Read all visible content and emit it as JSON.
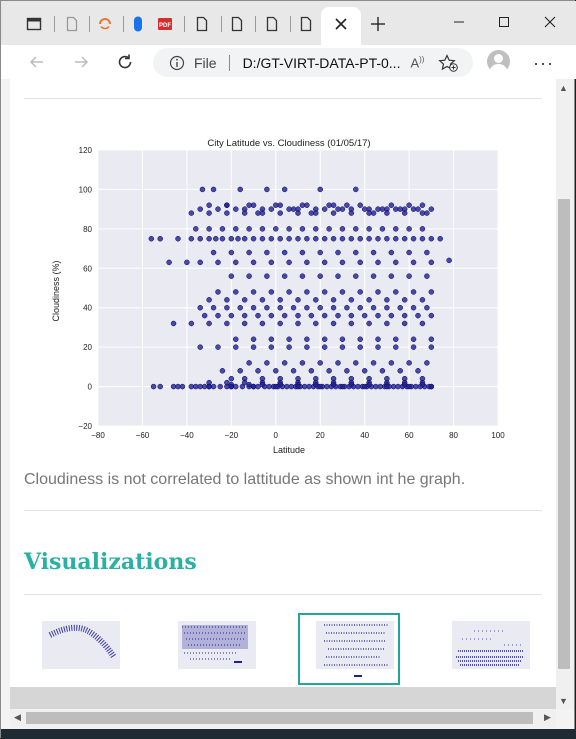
{
  "browser": {
    "address": {
      "file_label": "File",
      "url": "D:/GT-VIRT-DATA-PT-0..."
    },
    "icons": {
      "tab_icons": [
        "window-icon",
        "page-icon",
        "loading-icon",
        "extension-icon",
        "pdf-icon",
        "page-icon",
        "page-icon",
        "page-icon",
        "page-icon"
      ],
      "close_tab": "close-icon",
      "new_tab": "plus-icon"
    }
  },
  "page": {
    "description": "Cloudiness is not correlated to lattitude as shown int he graph.",
    "section_title": "Visualizations",
    "accent_color": "#2ab0a4"
  },
  "chart_data": {
    "type": "scatter",
    "title": "City Latitude vs. Cloudiness (01/05/17)",
    "xlabel": "Latitude",
    "ylabel": "Cloudiness (%)",
    "xlim": [
      -80,
      100
    ],
    "ylim": [
      -20,
      120
    ],
    "xticks": [
      -80,
      -60,
      -40,
      -20,
      0,
      20,
      40,
      60,
      80,
      100
    ],
    "yticks": [
      -20,
      0,
      20,
      40,
      60,
      80,
      100,
      120
    ],
    "grid": true,
    "marker_color": "#1f1f9a",
    "series": [
      {
        "x": [
          -55,
          -52,
          -46,
          -44,
          -42,
          -38,
          -36,
          -34,
          -32,
          -30,
          -28,
          -25,
          -22,
          -20,
          -18,
          -15,
          -12,
          -10,
          -8,
          -5,
          -3,
          -1,
          1,
          3,
          5,
          7,
          9,
          11,
          13,
          15,
          17,
          19,
          21,
          23,
          25,
          27,
          29,
          31,
          33,
          35,
          37,
          39,
          41,
          43,
          45,
          47,
          49,
          51,
          53,
          55,
          57,
          59,
          61,
          63,
          65,
          67,
          69,
          70,
          -56,
          -52,
          -44,
          -38,
          -34,
          -30,
          -27,
          -24,
          -20,
          -17,
          -14,
          -10,
          -6,
          -2,
          2,
          6,
          10,
          14,
          18,
          22,
          26,
          30,
          34,
          38,
          42,
          46,
          50,
          54,
          58,
          62,
          66,
          70,
          74,
          -34,
          -30,
          -26,
          -22,
          -18,
          -14,
          -10,
          -6,
          -2,
          2,
          6,
          10,
          14,
          18,
          22,
          26,
          30,
          34,
          38,
          42,
          46,
          50,
          54,
          58,
          62,
          66,
          70,
          -33,
          -28,
          -22,
          -16,
          -12,
          -8,
          -4,
          0,
          4,
          8,
          12,
          16,
          20,
          24,
          28,
          32,
          36,
          40,
          44,
          48,
          52,
          56,
          60,
          64,
          68,
          -36,
          -30,
          -24,
          -18,
          -12,
          -6,
          0,
          6,
          12,
          18,
          24,
          30,
          36,
          42,
          48,
          54,
          60,
          66,
          -38,
          -30,
          -22,
          -14,
          -6,
          2,
          10,
          18,
          26,
          34,
          42,
          50,
          58,
          66,
          -28,
          -20,
          -12,
          -4,
          4,
          12,
          20,
          28,
          36,
          44,
          52,
          60,
          68,
          -48,
          -40,
          -34,
          -26,
          -18,
          -10,
          -2,
          6,
          14,
          22,
          30,
          38,
          46,
          54,
          62,
          70,
          -20,
          -12,
          -4,
          4,
          12,
          20,
          28,
          36,
          44,
          52,
          60,
          68,
          -26,
          -18,
          -10,
          -2,
          6,
          14,
          22,
          30,
          38,
          46,
          54,
          62,
          70,
          -30,
          -22,
          -14,
          -6,
          2,
          10,
          18,
          26,
          34,
          42,
          50,
          58,
          66,
          -34,
          -28,
          -22,
          -16,
          -10,
          -4,
          2,
          8,
          14,
          20,
          26,
          32,
          38,
          44,
          50,
          56,
          62,
          68,
          -32,
          -26,
          -20,
          -14,
          -8,
          -2,
          4,
          10,
          16,
          22,
          28,
          34,
          40,
          46,
          52,
          58,
          64,
          70,
          -46,
          -38,
          -30,
          -22,
          -14,
          -6,
          2,
          10,
          18,
          26,
          34,
          42,
          50,
          58,
          66,
          -18,
          -10,
          -2,
          6,
          14,
          22,
          30,
          38,
          46,
          54,
          62,
          70,
          -34,
          -26,
          -18,
          -10,
          -2,
          6,
          14,
          22,
          30,
          38,
          46,
          54,
          62,
          70,
          -12,
          -4,
          4,
          12,
          20,
          28,
          36,
          44,
          52,
          60,
          68,
          -24,
          -16,
          -8,
          0,
          8,
          16,
          24,
          32,
          40,
          48,
          56,
          64,
          -20,
          -14,
          -6,
          2,
          10,
          18,
          26,
          34,
          42,
          50,
          58,
          66,
          -30,
          -22,
          -14,
          -6,
          2,
          10,
          18,
          26,
          34,
          42,
          50,
          58,
          66,
          -20,
          -12,
          -6,
          2,
          10,
          18,
          26,
          34,
          42,
          50,
          58,
          66,
          -30,
          -20,
          -10,
          0,
          10,
          20,
          30,
          40,
          50,
          60,
          70,
          78
        ],
        "y": [
          0,
          0,
          0,
          0,
          0,
          0,
          0,
          0,
          0,
          0,
          0,
          0,
          0,
          0,
          0,
          0,
          0,
          0,
          0,
          0,
          0,
          0,
          0,
          0,
          0,
          0,
          0,
          0,
          0,
          0,
          0,
          0,
          0,
          0,
          0,
          0,
          0,
          0,
          0,
          0,
          0,
          0,
          0,
          0,
          0,
          0,
          0,
          0,
          0,
          0,
          0,
          0,
          0,
          0,
          0,
          0,
          0,
          0,
          75,
          75,
          75,
          75,
          75,
          75,
          75,
          75,
          75,
          75,
          75,
          75,
          75,
          75,
          75,
          75,
          75,
          75,
          75,
          75,
          75,
          75,
          75,
          75,
          75,
          75,
          75,
          75,
          75,
          75,
          75,
          75,
          75,
          90,
          92,
          90,
          92,
          90,
          90,
          92,
          90,
          90,
          92,
          90,
          90,
          92,
          90,
          90,
          92,
          90,
          90,
          92,
          90,
          90,
          90,
          90,
          90,
          90,
          92,
          90,
          100,
          100,
          92,
          100,
          92,
          88,
          100,
          92,
          100,
          90,
          92,
          88,
          100,
          92,
          90,
          92,
          100,
          90,
          88,
          90,
          92,
          90,
          92,
          90,
          88,
          80,
          80,
          80,
          80,
          80,
          80,
          80,
          80,
          80,
          80,
          80,
          80,
          80,
          80,
          80,
          80,
          80,
          80,
          88,
          88,
          88,
          88,
          88,
          88,
          88,
          88,
          88,
          88,
          88,
          88,
          88,
          88,
          68,
          68,
          68,
          68,
          68,
          68,
          68,
          68,
          68,
          68,
          68,
          68,
          68,
          63,
          63,
          63,
          63,
          63,
          63,
          63,
          63,
          63,
          63,
          63,
          63,
          63,
          63,
          63,
          63,
          56,
          56,
          56,
          56,
          56,
          56,
          56,
          56,
          56,
          56,
          56,
          56,
          48,
          48,
          48,
          48,
          48,
          48,
          48,
          48,
          48,
          48,
          48,
          48,
          48,
          44,
          44,
          44,
          44,
          44,
          44,
          44,
          44,
          44,
          44,
          44,
          44,
          44,
          40,
          40,
          40,
          40,
          40,
          40,
          40,
          40,
          40,
          40,
          40,
          40,
          40,
          40,
          40,
          40,
          40,
          40,
          36,
          36,
          36,
          36,
          36,
          36,
          36,
          36,
          36,
          36,
          36,
          36,
          36,
          36,
          36,
          36,
          36,
          36,
          32,
          32,
          32,
          32,
          32,
          32,
          32,
          32,
          32,
          32,
          32,
          32,
          32,
          32,
          32,
          24,
          24,
          24,
          24,
          24,
          24,
          24,
          24,
          24,
          24,
          24,
          24,
          20,
          20,
          20,
          20,
          20,
          20,
          20,
          20,
          20,
          20,
          20,
          20,
          20,
          20,
          12,
          12,
          12,
          12,
          12,
          12,
          12,
          12,
          12,
          12,
          12,
          8,
          8,
          8,
          8,
          8,
          8,
          8,
          8,
          8,
          8,
          8,
          8,
          4,
          4,
          4,
          4,
          4,
          4,
          4,
          4,
          4,
          4,
          4,
          4,
          2,
          2,
          2,
          2,
          2,
          2,
          2,
          2,
          2,
          2,
          2,
          2,
          2,
          1,
          1,
          1,
          1,
          1,
          1,
          1,
          1,
          1,
          1,
          1,
          1,
          0,
          0,
          0,
          0,
          0,
          0,
          0,
          0,
          0,
          0,
          0,
          64
        ]
      }
    ]
  }
}
